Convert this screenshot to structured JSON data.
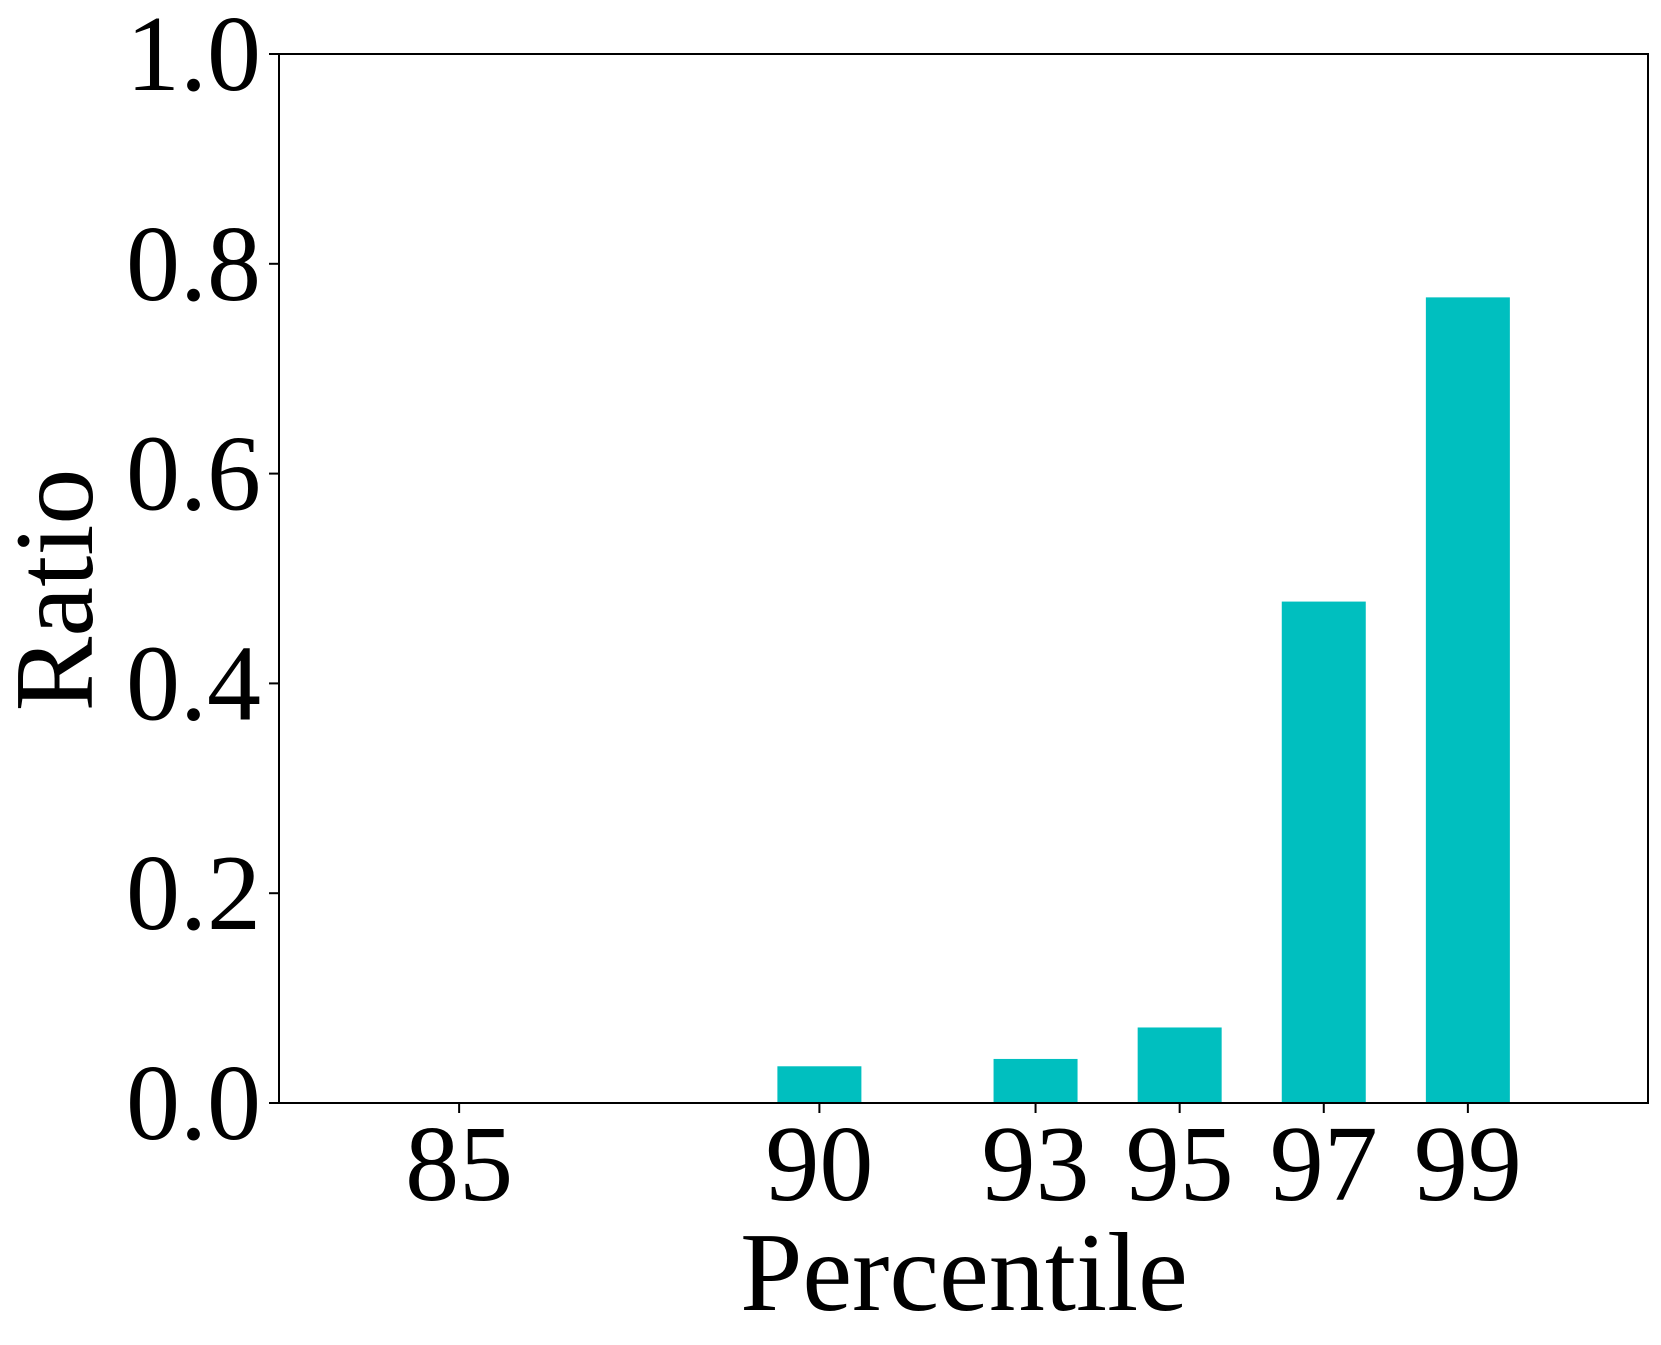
{
  "chart_data": {
    "type": "bar",
    "title": "",
    "xlabel": "Percentile",
    "ylabel": "Ratio",
    "x": [
      85,
      90,
      93,
      95,
      97,
      99
    ],
    "x_tick_labels": [
      "85",
      "90",
      "93",
      "95",
      "97",
      "99"
    ],
    "values": [
      0.0,
      0.035,
      0.042,
      0.072,
      0.478,
      0.768
    ],
    "ylim": [
      0.0,
      1.0
    ],
    "y_ticks": [
      0.0,
      0.2,
      0.4,
      0.6,
      0.8,
      1.0
    ],
    "y_tick_labels": [
      "0.0",
      "0.2",
      "0.4",
      "0.6",
      "0.8",
      "1.0"
    ],
    "grid": false,
    "legend": "none",
    "bar_color": "#00BFBF"
  }
}
